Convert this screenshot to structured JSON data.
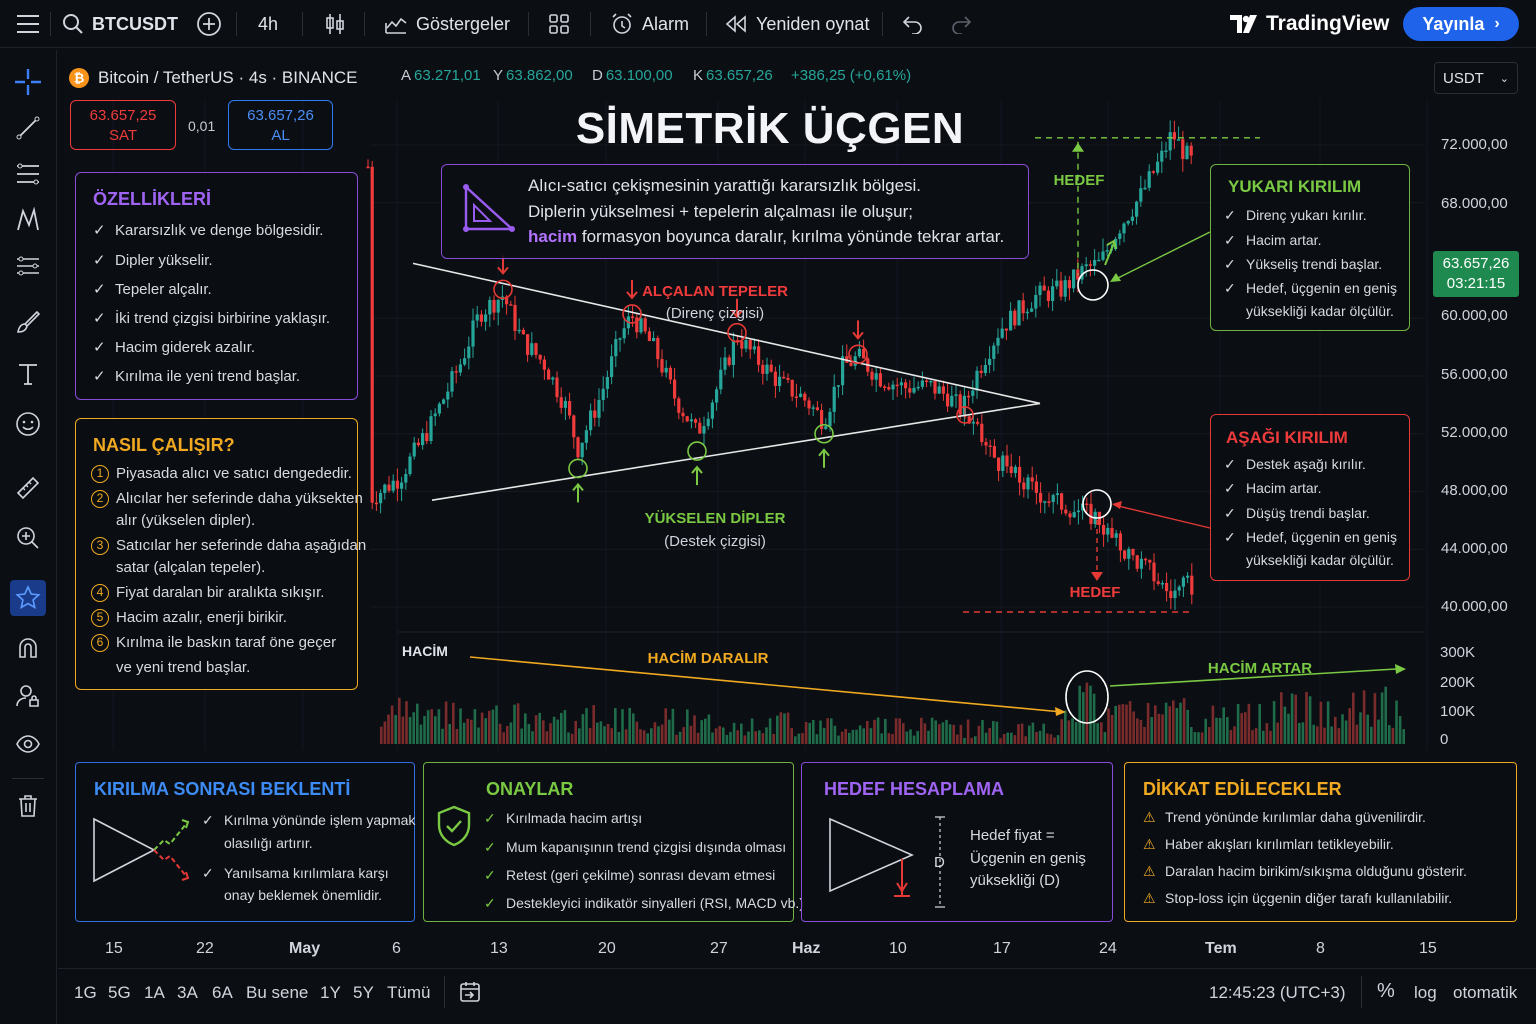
{
  "topbar": {
    "symbol": "BTCUSDT",
    "interval": "4h",
    "indicators": "Göstergeler",
    "alert": "Alarm",
    "replay": "Yeniden oynat",
    "logo": "TradingView",
    "publish": "Yayınla"
  },
  "legend": {
    "pair": "Bitcoin / TetherUS · 4s · BINANCE",
    "open_k": "A",
    "open": "63.271,01",
    "high_k": "Y",
    "high": "63.862,00",
    "low_k": "D",
    "low": "63.100,00",
    "close_k": "K",
    "close": "63.657,26",
    "change": "+386,25 (+0,61%)"
  },
  "trade": {
    "sell_price": "63.657,25",
    "sell_label": "SAT",
    "spread": "0,01",
    "buy_price": "63.657,26",
    "buy_label": "AL"
  },
  "currency": "USDT",
  "title": "SİMETRİK ÜÇGEN",
  "description": {
    "line1": "Alıcı-satıcı çekişmesinin yarattığı kararsızlık bölgesi.",
    "line2": "Diplerin yükselmesi + tepelerin alçalması ile oluşur;",
    "line3_highlight": "hacim",
    "line3_rest": "formasyon boyunca daralır, kırılma yönünde tekrar artar."
  },
  "features": {
    "title": "ÖZELLİKLERİ",
    "items": [
      "Kararsızlık ve denge bölgesidir.",
      "Dipler yükselir.",
      "Tepeler alçalır.",
      "İki trend çizgisi birbirine yaklaşır.",
      "Hacim giderek azalır.",
      "Kırılma ile yeni trend başlar."
    ]
  },
  "how": {
    "title": "NASIL ÇALIŞIR?",
    "items": [
      {
        "n": "1",
        "l1": "Piyasada alıcı ve satıcı dengededir.",
        "l2": ""
      },
      {
        "n": "2",
        "l1": "Alıcılar her seferinde daha yüksekten",
        "l2": "alır (yükselen dipler)."
      },
      {
        "n": "3",
        "l1": "Satıcılar her seferinde daha aşağıdan",
        "l2": "satar (alçalan tepeler)."
      },
      {
        "n": "4",
        "l1": "Fiyat daralan bir aralıkta sıkışır.",
        "l2": ""
      },
      {
        "n": "5",
        "l1": "Hacim azalır, enerji birikir.",
        "l2": ""
      },
      {
        "n": "6",
        "l1": "Kırılma ile baskın taraf öne geçer",
        "l2": "ve yeni trend başlar."
      }
    ]
  },
  "annotations": {
    "lower_highs": "ALÇALAN TEPELER",
    "resistance": "(Direnç çizgisi)",
    "higher_lows": "YÜKSELEN DİPLER",
    "support": "(Destek çizgisi)",
    "target_up": "HEDEF",
    "target_down": "HEDEF",
    "volume": "HACİM",
    "volume_shrinks": "HACİM DARALIR",
    "volume_grows": "HACİM ARTAR"
  },
  "breakout_up": {
    "title": "YUKARI KIRILIM",
    "items": [
      "Direnç yukarı kırılır.",
      "Hacim artar.",
      "Yükseliş trendi başlar."
    ],
    "item4_l1": "Hedef, üçgenin en geniş",
    "item4_l2": "yüksekliği kadar ölçülür."
  },
  "breakout_down": {
    "title": "AŞAĞI KIRILIM",
    "items": [
      "Destek aşağı kırılır.",
      "Hacim artar.",
      "Düşüş trendi başlar."
    ],
    "item4_l1": "Hedef, üçgenin en geniş",
    "item4_l2": "yüksekliği kadar ölçülür."
  },
  "price_axis": [
    "72.000,00",
    "68.000,00",
    "60.000,00",
    "56.000,00",
    "52.000,00",
    "48.000,00",
    "44.000,00",
    "40.000,00"
  ],
  "price_tag": {
    "price": "63.657,26",
    "countdown": "03:21:15"
  },
  "volume_axis": [
    "300K",
    "200K",
    "100K",
    "0"
  ],
  "panels": {
    "after": {
      "title": "KIRILMA SONRASI BEKLENTİ",
      "i1_l1": "Kırılma yönünde işlem yapmak",
      "i1_l2": "olasılığı artırır.",
      "i2_l1": "Yanılsama kırılımlara karşı",
      "i2_l2": "onay beklemek önemlidir."
    },
    "confirm": {
      "title": "ONAYLAR",
      "items": [
        "Kırılmada hacim artışı",
        "Mum kapanışının trend çizgisi dışında olması",
        "Retest (geri çekilme) sonrası devam etmesi",
        "Destekleyici indikatör sinyalleri (RSI, MACD vb.)"
      ]
    },
    "target": {
      "title": "HEDEF HESAPLAMA",
      "d": "D",
      "l1": "Hedef fiyat =",
      "l2": "Üçgenin en geniş",
      "l3": "yüksekliği (D)"
    },
    "caution": {
      "title": "DİKKAT EDİLECEKLER",
      "items": [
        "Trend yönünde kırılımlar daha güvenilirdir.",
        "Haber akışları kırılımları tetikleyebilir.",
        "Daralan hacim birikim/sıkışma olduğunu gösterir.",
        "Stop-loss için üçgenin diğer tarafı kullanılabilir."
      ]
    }
  },
  "time_axis": [
    "15",
    "22",
    "May",
    "6",
    "13",
    "20",
    "27",
    "Haz",
    "10",
    "17",
    "24",
    "Tem",
    "8",
    "15"
  ],
  "ranges": [
    "1G",
    "5G",
    "1A",
    "3A",
    "6A",
    "Bu sene",
    "1Y",
    "5Y",
    "Tümü"
  ],
  "bottom_right": {
    "clock": "12:45:23 (UTC+3)",
    "percent": "%",
    "log": "log",
    "auto": "otomatik"
  },
  "colors": {
    "up": "#26a69a",
    "down": "#ef3b3b",
    "accent": "#1e63e9",
    "purple": "#8a4bd8",
    "orange": "#f0a920",
    "green": "#7ac943",
    "red": "#e53935",
    "blue": "#3d7ef5"
  },
  "chart_data": {
    "type": "candlestick",
    "title": "SİMETRİK ÜÇGEN",
    "ylim": [
      40000,
      72000
    ],
    "price_ticks": [
      72000,
      68000,
      60000,
      56000,
      52000,
      48000,
      44000,
      40000
    ],
    "volume_ylim": [
      0,
      300000
    ],
    "volume_ticks": [
      300000,
      200000,
      100000,
      0
    ],
    "x_ticks": [
      "15",
      "22",
      "May",
      "6",
      "13",
      "20",
      "27",
      "Haz",
      "10",
      "17",
      "24",
      "Tem",
      "8",
      "15"
    ],
    "last_price": 63657.26,
    "triangle_highs": [
      62000,
      60300,
      59000,
      57500
    ],
    "triangle_lows": [
      49600,
      50800,
      52000
    ],
    "breakout_up_target": 72500,
    "breakout_down_target": 40000
  }
}
